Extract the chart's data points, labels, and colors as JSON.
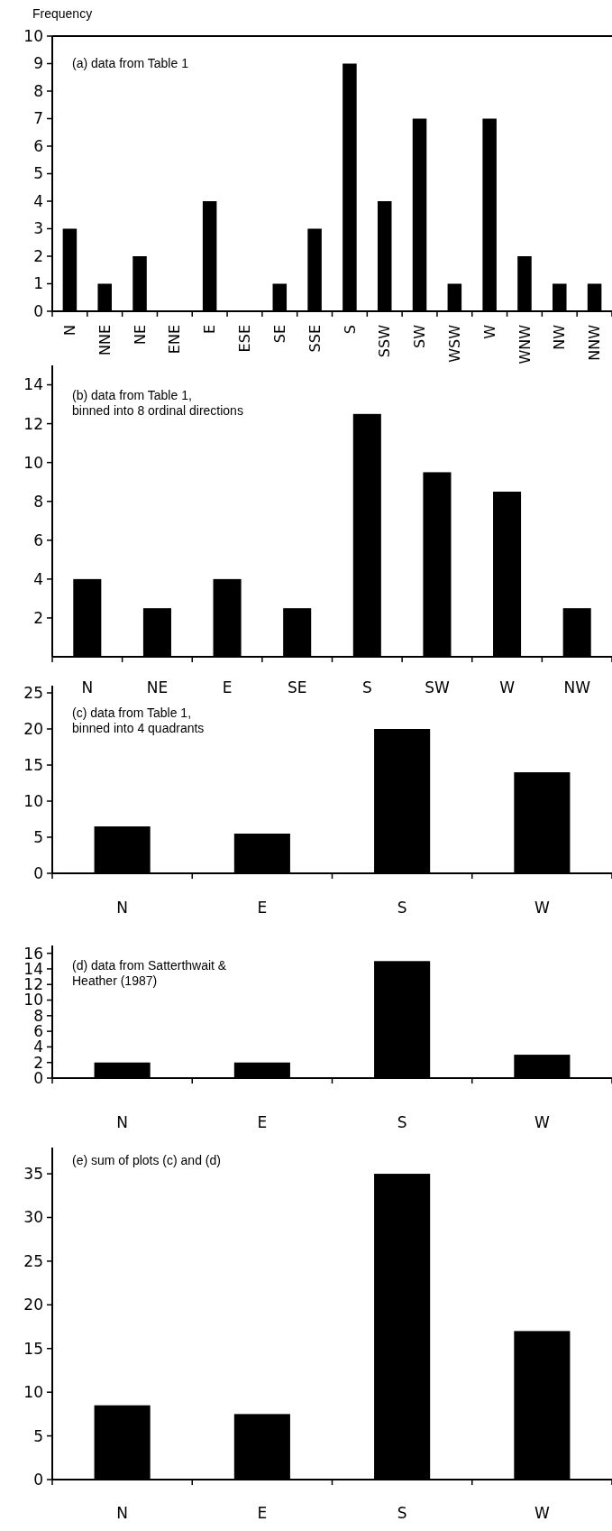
{
  "chart_data": [
    {
      "type": "bar",
      "ylabel": "Frequency",
      "annotations": [
        "(a) data from Table 1"
      ],
      "categories": [
        "N",
        "NNE",
        "NE",
        "ENE",
        "E",
        "ESE",
        "SE",
        "SSE",
        "S",
        "SSW",
        "SW",
        "WSW",
        "W",
        "WNW",
        "NW",
        "NNW"
      ],
      "values": [
        3,
        1,
        2,
        0,
        4,
        0,
        1,
        3,
        9,
        4,
        7,
        1,
        7,
        2,
        1,
        1
      ],
      "color": "#000000",
      "ylim": [
        0,
        10
      ],
      "yticks": [
        0,
        1,
        2,
        3,
        4,
        5,
        6,
        7,
        8,
        9,
        10
      ]
    },
    {
      "type": "bar",
      "annotations": [
        "(b) data from Table 1,\nbinned into 8 ordinal directions"
      ],
      "categories": [
        "N",
        "NE",
        "E",
        "SE",
        "S",
        "SW",
        "W",
        "NW"
      ],
      "values": [
        4,
        2.5,
        4,
        2.5,
        12.5,
        9.5,
        8.5,
        2.5
      ],
      "color": "#000000",
      "ylim": [
        0,
        15
      ],
      "yticks": [
        2,
        4,
        6,
        8,
        10,
        12,
        14
      ]
    },
    {
      "type": "bar",
      "annotations": [
        "(c) data from Table 1,\nbinned into 4 quadrants"
      ],
      "categories": [
        "N",
        "E",
        "S",
        "W"
      ],
      "values": [
        6.5,
        5.5,
        20,
        14
      ],
      "color": "#000000",
      "ylim": [
        0,
        26
      ],
      "yticks": [
        0,
        5,
        10,
        15,
        20,
        25
      ]
    },
    {
      "type": "bar",
      "annotations": [
        "(d) data from Satterthwait &\nHeather (1987)"
      ],
      "categories": [
        "N",
        "E",
        "S",
        "W"
      ],
      "values": [
        2,
        2,
        15,
        3
      ],
      "color": "#000000",
      "ylim": [
        0,
        17
      ],
      "yticks": [
        0,
        2,
        4,
        6,
        8,
        10,
        12,
        14,
        16
      ]
    },
    {
      "type": "bar",
      "annotations": [
        "(e) sum of plots (c) and (d)"
      ],
      "categories": [
        "N",
        "E",
        "S",
        "W"
      ],
      "values": [
        8.5,
        7.5,
        35,
        17
      ],
      "color": "#000000",
      "ylim": [
        0,
        38
      ],
      "yticks": [
        0,
        5,
        10,
        15,
        20,
        25,
        30,
        35
      ]
    }
  ]
}
